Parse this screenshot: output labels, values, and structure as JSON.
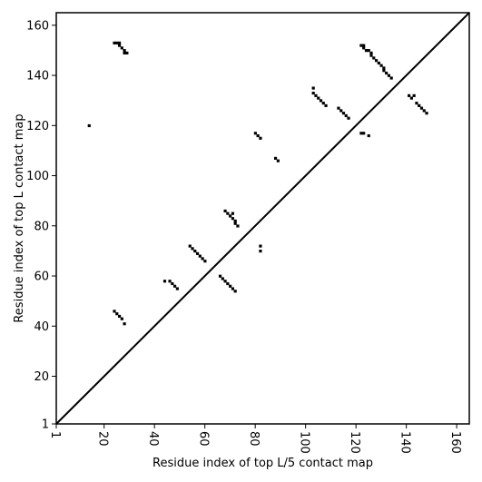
{
  "chart_data": {
    "type": "heatmap",
    "title": "",
    "xlabel": "Residue index of top L/5 contact map",
    "ylabel": "Residue index of top L contact map",
    "xlim": [
      1,
      165
    ],
    "ylim": [
      1,
      165
    ],
    "x_ticks": [
      1,
      20,
      40,
      60,
      80,
      100,
      120,
      140,
      160
    ],
    "y_ticks": [
      1,
      20,
      40,
      60,
      80,
      100,
      120,
      140,
      160
    ],
    "x_tick_rotation": -90,
    "diagonal_line": true,
    "grid": false,
    "cell_color": "#000000",
    "upper_triangle_contacts": [
      [
        24,
        153
      ],
      [
        25,
        153
      ],
      [
        26,
        153
      ],
      [
        26,
        152
      ],
      [
        27,
        151
      ],
      [
        28,
        150
      ],
      [
        28,
        149
      ],
      [
        29,
        149
      ],
      [
        122,
        152
      ],
      [
        123,
        152
      ],
      [
        123,
        151
      ],
      [
        124,
        150
      ],
      [
        125,
        150
      ],
      [
        126,
        149
      ],
      [
        126,
        148
      ],
      [
        127,
        147
      ],
      [
        128,
        146
      ],
      [
        129,
        145
      ],
      [
        130,
        144
      ],
      [
        131,
        143
      ],
      [
        131,
        142
      ],
      [
        132,
        141
      ],
      [
        133,
        140
      ],
      [
        134,
        139
      ],
      [
        14,
        120
      ],
      [
        103,
        135
      ],
      [
        103,
        133
      ],
      [
        104,
        132
      ],
      [
        105,
        131
      ],
      [
        106,
        130
      ],
      [
        107,
        129
      ],
      [
        108,
        128
      ],
      [
        113,
        127
      ],
      [
        114,
        126
      ],
      [
        115,
        125
      ],
      [
        116,
        124
      ],
      [
        117,
        123
      ],
      [
        80,
        117
      ],
      [
        81,
        116
      ],
      [
        82,
        115
      ],
      [
        88,
        107
      ],
      [
        89,
        106
      ],
      [
        122,
        117
      ],
      [
        123,
        117
      ],
      [
        125,
        116
      ],
      [
        141,
        132
      ],
      [
        142,
        131
      ],
      [
        143,
        132
      ],
      [
        144,
        129
      ],
      [
        145,
        128
      ],
      [
        146,
        127
      ],
      [
        147,
        126
      ],
      [
        148,
        125
      ]
    ],
    "lower_triangle_contacts": [
      [
        68,
        86
      ],
      [
        69,
        85
      ],
      [
        70,
        84
      ],
      [
        71,
        85
      ],
      [
        71,
        83
      ],
      [
        72,
        82
      ],
      [
        72,
        81
      ],
      [
        73,
        80
      ],
      [
        82,
        72
      ],
      [
        82,
        70
      ],
      [
        54,
        72
      ],
      [
        55,
        71
      ],
      [
        56,
        70
      ],
      [
        57,
        69
      ],
      [
        58,
        68
      ],
      [
        59,
        67
      ],
      [
        60,
        66
      ],
      [
        44,
        58
      ],
      [
        46,
        58
      ],
      [
        47,
        57
      ],
      [
        48,
        56
      ],
      [
        49,
        55
      ],
      [
        66,
        60
      ],
      [
        67,
        59
      ],
      [
        68,
        58
      ],
      [
        69,
        57
      ],
      [
        70,
        56
      ],
      [
        71,
        55
      ],
      [
        72,
        54
      ],
      [
        24,
        46
      ],
      [
        25,
        45
      ],
      [
        26,
        44
      ],
      [
        27,
        43
      ],
      [
        28,
        41
      ]
    ]
  }
}
